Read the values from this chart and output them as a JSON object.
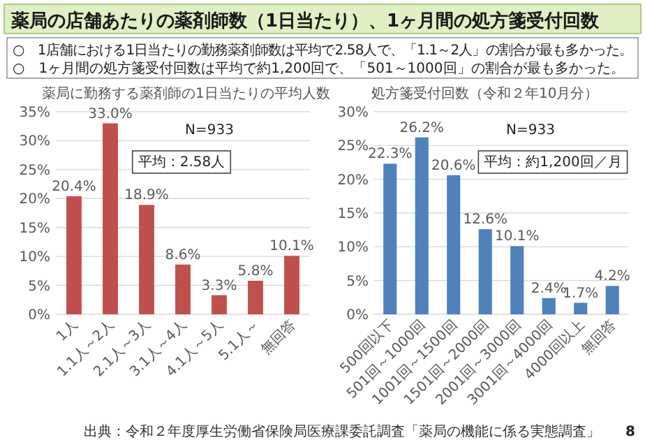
{
  "chart_data": [
    {
      "type": "other",
      "title": "薬局の店舗あたりの薬剤師数（1日当たり）、1ヶ月間の処方箋受付回数",
      "annotations": [
        "○　1店舗における1日当たりの勤務薬剤師数は平均で2.58人で、「1.1～2人」の割合が最も多かった。",
        "○　1ヶ月間の処方箋受付回数は平均で約1,200回で、「501～1000回」の割合が最も多かった。",
        "出典：令和２年度厚生労働省保険局医療課委託調査「薬局の機能に係る実態調査」",
        "8"
      ]
    },
    {
      "type": "bar",
      "title": "薬局に勤務する薬剤師の1日当たりの平均人数",
      "categories": [
        "1人",
        "1.1人～2人",
        "2.1人～3人",
        "3.1人～4人",
        "4.1人～5人",
        "5.1人～",
        "無回答"
      ],
      "values": [
        20.4,
        33.0,
        18.9,
        8.6,
        3.3,
        5.8,
        10.1
      ],
      "value_labels": [
        "20.4%",
        "33.0%",
        "18.9%",
        "8.6%",
        "3.3%",
        "5.8%",
        "10.1%"
      ],
      "color": "#c0504d",
      "ylim": [
        0,
        35
      ],
      "yticks": [
        {
          "value": 0,
          "label": "0%"
        },
        {
          "value": 5,
          "label": "5%"
        },
        {
          "value": 10,
          "label": "10%"
        },
        {
          "value": 15,
          "label": "15%"
        },
        {
          "value": 20,
          "label": "20%"
        },
        {
          "value": 25,
          "label": "25%"
        },
        {
          "value": 30,
          "label": "30%"
        },
        {
          "value": 35,
          "label": "35%"
        }
      ],
      "grid": "y",
      "annotations": [
        "N=933",
        "平均：2.58人"
      ]
    },
    {
      "type": "bar",
      "title": "処方箋受付回数（令和２年10月分）",
      "categories": [
        "500回以下",
        "501回～1000回",
        "1001回～1500回",
        "1501回～2000回",
        "2001回～3000回",
        "3001回～4000回",
        "4000回以上",
        "無回答"
      ],
      "values": [
        22.3,
        26.2,
        20.6,
        12.6,
        10.1,
        2.4,
        1.7,
        4.2
      ],
      "value_labels": [
        "22.3%",
        "26.2%",
        "20.6%",
        "12.6%",
        "10.1%",
        "2.4%",
        "1.7%",
        "4.2%"
      ],
      "color": "#4f81bd",
      "ylim": [
        0,
        30
      ],
      "yticks": [
        {
          "value": 0,
          "label": "0%"
        },
        {
          "value": 5,
          "label": "5%"
        },
        {
          "value": 10,
          "label": "10%"
        },
        {
          "value": 15,
          "label": "15%"
        },
        {
          "value": 20,
          "label": "20%"
        },
        {
          "value": 25,
          "label": "25%"
        },
        {
          "value": 30,
          "label": "30%"
        }
      ],
      "grid": "y",
      "annotations": [
        "N=933",
        "平均：約1,200回／月"
      ]
    }
  ]
}
